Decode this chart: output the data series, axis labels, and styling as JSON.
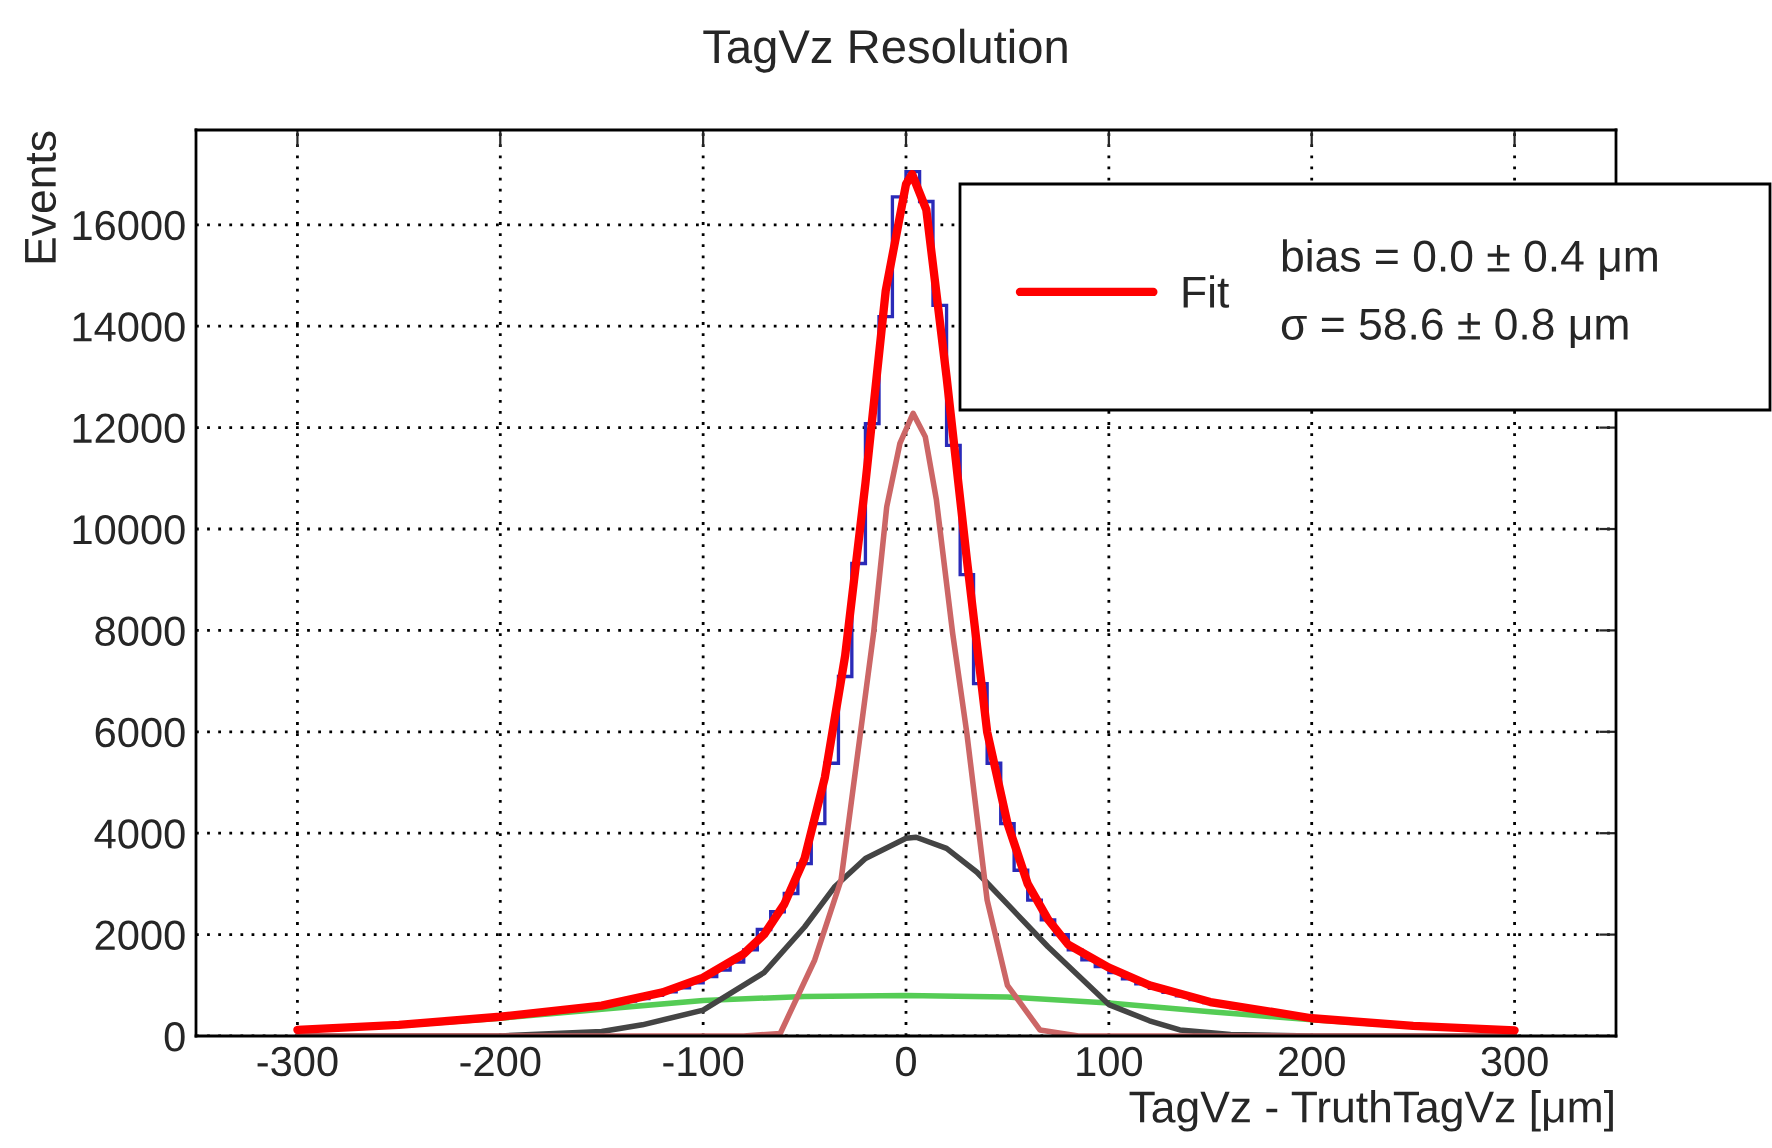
{
  "chart_data": {
    "type": "histogram",
    "title": "TagVz Resolution",
    "xlabel": "TagVz - TruthTagVz [μm]",
    "ylabel": "Events",
    "xlim": [
      -350,
      350
    ],
    "xticks": [
      -300,
      -200,
      -100,
      0,
      100,
      200,
      300
    ],
    "ylim": [
      0,
      17870
    ],
    "yticks": [
      0,
      2000,
      4000,
      6000,
      8000,
      10000,
      12000,
      14000,
      16000
    ],
    "grid": true,
    "legend": "top right",
    "marker": "none",
    "line_style": "solid",
    "annotations": [
      "bias = 0.0 ± 0.4 μm",
      "σ = 58.6 ± 0.8 μm"
    ],
    "series": [
      {
        "color": "#2a2ab8",
        "bins": [
          -300,
          -293.3,
          -286.7,
          -280,
          -273.3,
          -266.7,
          -260,
          -253.3,
          -246.7,
          -240,
          -233.3,
          -226.7,
          -220,
          -213.3,
          -206.7,
          -200,
          -193.3,
          -186.7,
          -180,
          -173.3,
          -166.7,
          -160,
          -153.3,
          -146.7,
          -140,
          -133.3,
          -126.7,
          -120,
          -113.3,
          -106.7,
          -100,
          -93.3,
          -86.7,
          -80,
          -73.3,
          -66.7,
          -60,
          -53.3,
          -46.7,
          -40,
          -33.3,
          -26.7,
          -20,
          -13.3,
          -6.7,
          0,
          6.7,
          13.3,
          20,
          26.7,
          33.3,
          40,
          46.7,
          53.3,
          60,
          66.7,
          73.3,
          80,
          86.7,
          93.3,
          100,
          106.7,
          113.3,
          120,
          126.7,
          133.3,
          140,
          146.7,
          153.3,
          160,
          166.7,
          173.3,
          180,
          186.7,
          193.3,
          200,
          206.7,
          213.3,
          220,
          226.7,
          233.3,
          240,
          246.7,
          253.3,
          260,
          266.7,
          273.3,
          280,
          286.7,
          293.3,
          300
        ],
        "values": [
          120,
          135,
          150,
          165,
          180,
          195,
          210,
          225,
          245,
          260,
          280,
          300,
          320,
          340,
          365,
          390,
          415,
          440,
          465,
          495,
          525,
          560,
          600,
          640,
          690,
          740,
          800,
          870,
          950,
          1050,
          1170,
          1300,
          1460,
          1700,
          2100,
          2450,
          2810,
          3400,
          4190,
          5380,
          7090,
          9320,
          12080,
          14190,
          16550,
          17050,
          16460,
          14410,
          11650,
          9100,
          6950,
          5380,
          4190,
          3270,
          2680,
          2290,
          2000,
          1700,
          1500,
          1370,
          1250,
          1130,
          1030,
          940,
          860,
          790,
          720,
          660,
          610,
          560,
          520,
          480,
          445,
          410,
          380,
          350,
          325,
          300,
          280,
          260,
          240,
          220,
          205,
          190,
          175,
          160,
          150,
          140,
          130,
          120
        ]
      },
      {
        "type": "line",
        "color": "#55cc55",
        "x": [
          -300,
          -250,
          -200,
          -150,
          -100,
          -50,
          0,
          50,
          100,
          150,
          200,
          250,
          300
        ],
        "values": [
          110,
          210,
          350,
          530,
          700,
          780,
          800,
          770,
          650,
          480,
          320,
          190,
          110
        ]
      },
      {
        "type": "line",
        "color": "#444444",
        "x": [
          -300,
          -200,
          -150,
          -130,
          -100,
          -70,
          -50,
          -35,
          -20,
          0,
          5,
          20,
          35,
          50,
          70,
          100,
          120,
          135,
          160,
          200,
          300
        ],
        "values": [
          0,
          0,
          90,
          220,
          510,
          1250,
          2150,
          2950,
          3500,
          3900,
          3920,
          3700,
          3230,
          2600,
          1760,
          620,
          300,
          120,
          30,
          0,
          0
        ]
      },
      {
        "type": "line",
        "color": "#cc6666",
        "x": [
          -300,
          -80,
          -62,
          -45,
          -32,
          -16,
          -9.5,
          -3,
          3.5,
          9.5,
          15,
          23,
          30,
          40,
          50,
          66,
          85,
          300
        ],
        "values": [
          0,
          0,
          50,
          1500,
          3080,
          7940,
          10440,
          11690,
          12280,
          11820,
          10570,
          7940,
          5970,
          2680,
          1000,
          120,
          0,
          0
        ]
      },
      {
        "type": "line",
        "name": "Fit",
        "color": "#ff0000",
        "x": [
          -300,
          -250,
          -200,
          -150,
          -120,
          -100,
          -80,
          -70,
          -60,
          -50,
          -40,
          -30,
          -20,
          -10,
          0,
          3,
          10,
          20,
          30,
          40,
          50,
          60,
          70,
          80,
          100,
          120,
          150,
          200,
          250,
          300
        ],
        "values": [
          120,
          220,
          380,
          600,
          860,
          1150,
          1620,
          2000,
          2600,
          3500,
          5100,
          7500,
          10900,
          14700,
          16800,
          17000,
          16300,
          13000,
          9400,
          6000,
          4200,
          3000,
          2300,
          1800,
          1350,
          1000,
          670,
          350,
          200,
          110
        ]
      }
    ]
  }
}
